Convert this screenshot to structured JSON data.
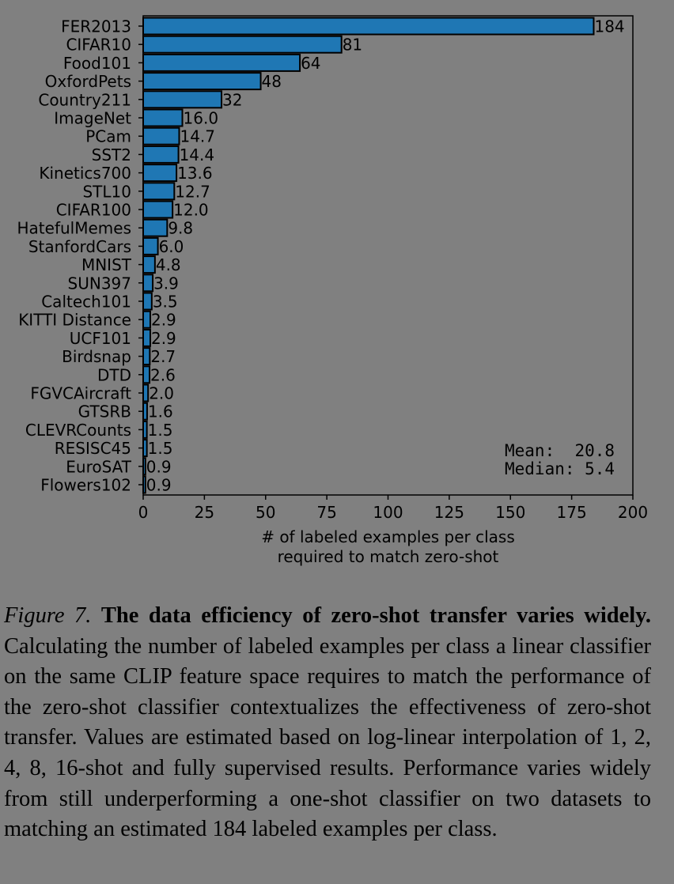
{
  "chart_data": {
    "type": "bar",
    "orientation": "horizontal",
    "categories": [
      "FER2013",
      "CIFAR10",
      "Food101",
      "OxfordPets",
      "Country211",
      "ImageNet",
      "PCam",
      "SST2",
      "Kinetics700",
      "STL10",
      "CIFAR100",
      "HatefulMemes",
      "StanfordCars",
      "MNIST",
      "SUN397",
      "Caltech101",
      "KITTI Distance",
      "UCF101",
      "Birdsnap",
      "DTD",
      "FGVCAircraft",
      "GTSRB",
      "CLEVRCounts",
      "RESISC45",
      "EuroSAT",
      "Flowers102"
    ],
    "values": [
      184,
      81,
      64,
      48,
      32,
      16.0,
      14.7,
      14.4,
      13.6,
      12.7,
      12.0,
      9.8,
      6.0,
      4.8,
      3.9,
      3.5,
      2.9,
      2.9,
      2.7,
      2.6,
      2.0,
      1.6,
      1.5,
      1.5,
      0.9,
      0.9
    ],
    "value_labels": [
      "184",
      "81",
      "64",
      "48",
      "32",
      "16.0",
      "14.7",
      "14.4",
      "13.6",
      "12.7",
      "12.0",
      "9.8",
      "6.0",
      "4.8",
      "3.9",
      "3.5",
      "2.9",
      "2.9",
      "2.7",
      "2.6",
      "2.0",
      "1.6",
      "1.5",
      "1.5",
      "0.9",
      "0.9"
    ],
    "xlim": [
      0,
      200
    ],
    "xticks": [
      "0",
      "25",
      "50",
      "75",
      "100",
      "125",
      "150",
      "175",
      "200"
    ],
    "xlabel_line1": "# of labeled examples per class",
    "xlabel_line2": "required to match zero-shot",
    "stats_mean": "Mean:  20.8",
    "stats_median": "Median: 5.4",
    "bar_color": "#1f77b4",
    "grid": false
  },
  "caption": {
    "figure_label": "Figure 7.",
    "title": "The data efficiency of zero-shot transfer varies widely.",
    "body": "Calculating the number of labeled examples per class a linear classifier on the same CLIP feature space requires to match the performance of the zero-shot classifier contextualizes the effectiveness of zero-shot transfer. Values are estimated based on log-linear interpolation of 1, 2, 4, 8, 16-shot and fully supervised results. Performance varies widely from still underperforming a one-shot classifier on two datasets to matching an estimated 184 labeled examples per class."
  }
}
